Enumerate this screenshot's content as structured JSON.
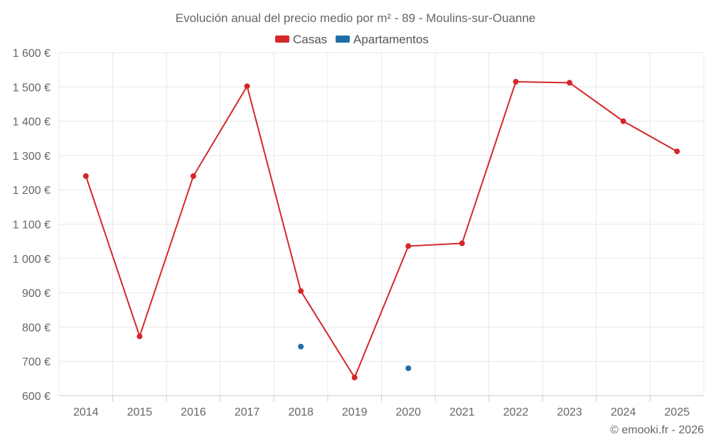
{
  "chart_data": {
    "type": "line",
    "title": "Evolución anual del precio medio por m² - 89 - Moulins-sur-Ouanne",
    "categories": [
      "2014",
      "2015",
      "2016",
      "2017",
      "2018",
      "2019",
      "2020",
      "2021",
      "2022",
      "2023",
      "2024",
      "2025"
    ],
    "ylim": [
      600,
      1600
    ],
    "yticks": [
      600,
      700,
      800,
      900,
      1000,
      1100,
      1200,
      1300,
      1400,
      1500,
      1600
    ],
    "ytick_labels": [
      "600 €",
      "700 €",
      "800 €",
      "900 €",
      "1 000 €",
      "1 100 €",
      "1 200 €",
      "1 300 €",
      "1 400 €",
      "1 500 €",
      "1 600 €"
    ],
    "legend_position": "top-center",
    "grid": true,
    "series": [
      {
        "name": "Casas",
        "color": "#d62728",
        "values": [
          1240,
          773,
          1240,
          1502,
          905,
          653,
          1036,
          1044,
          1515,
          1512,
          1400,
          1312
        ]
      },
      {
        "name": "Apartamentos",
        "color": "#1f6ea8",
        "values": [
          null,
          null,
          null,
          null,
          743,
          null,
          680,
          null,
          null,
          null,
          null,
          null
        ]
      }
    ],
    "credit": "© emooki.fr - 2026"
  }
}
